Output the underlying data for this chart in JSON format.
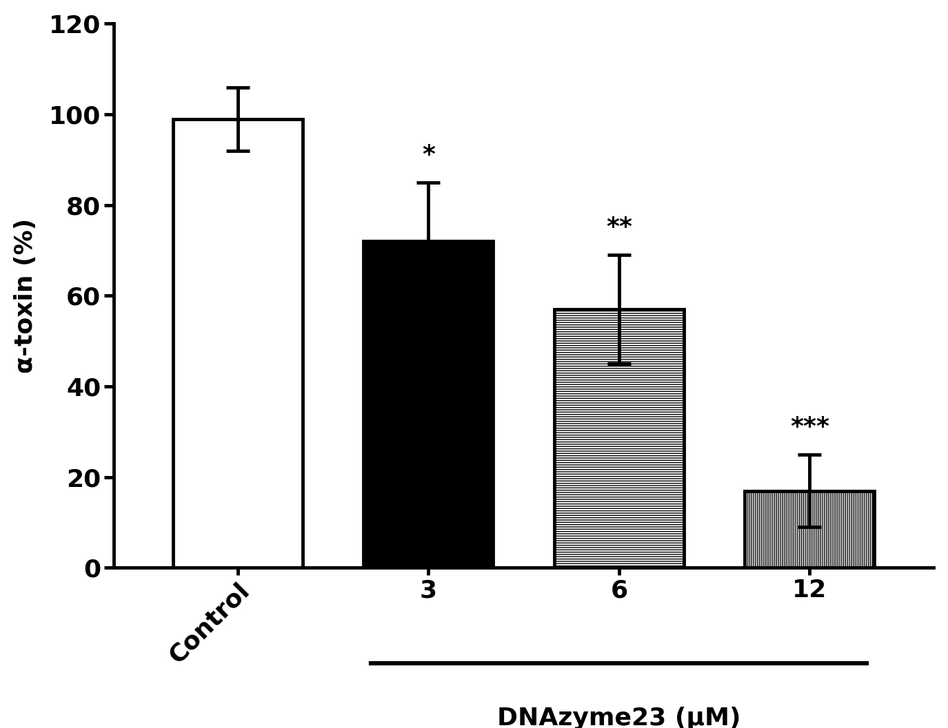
{
  "categories": [
    "Control",
    "3",
    "6",
    "12"
  ],
  "values": [
    99,
    72,
    57,
    17
  ],
  "errors": [
    7,
    13,
    12,
    8
  ],
  "significance": [
    "",
    "*",
    "**",
    "***"
  ],
  "ylabel": "α-toxin (%)",
  "xlabel_group": "DNAzyme23 (μM)",
  "ylim": [
    0,
    120
  ],
  "yticks": [
    0,
    20,
    40,
    60,
    80,
    100,
    120
  ],
  "bar_width": 0.68,
  "sig_fontsize": 26,
  "axis_fontsize": 26,
  "tick_fontsize": 26,
  "xlabel_group_fontsize": 26,
  "background_color": "white",
  "line_width": 3.5,
  "capsize": 12
}
